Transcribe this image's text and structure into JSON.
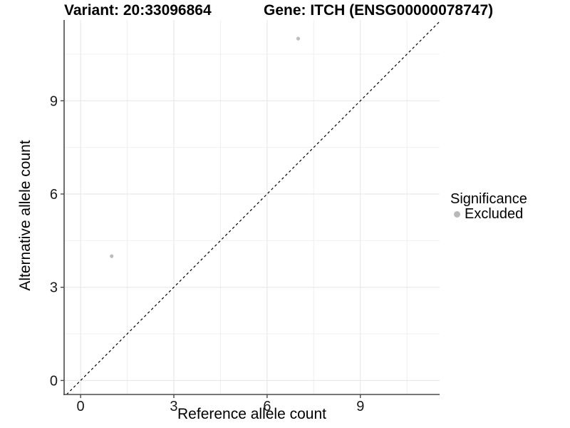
{
  "titles": {
    "variant": "Variant: 20:33096864",
    "gene": "Gene: ITCH (ENSG00000078747)"
  },
  "axes": {
    "x_label": "Reference allele count",
    "y_label": "Alternative allele count"
  },
  "legend": {
    "title": "Significance",
    "items": [
      {
        "label": "Excluded",
        "color": "#b9b9b9"
      }
    ]
  },
  "chart_data": {
    "type": "scatter",
    "title": "Variant: 20:33096864 — Gene: ITCH (ENSG00000078747)",
    "xlabel": "Reference allele count",
    "ylabel": "Alternative allele count",
    "xlim": [
      -0.53,
      11.55
    ],
    "ylim": [
      -0.45,
      11.6
    ],
    "x_ticks": [
      0,
      3,
      6,
      9
    ],
    "y_ticks": [
      0,
      3,
      6,
      9
    ],
    "x_minor_ticks": [
      1.5,
      4.5,
      7.5,
      10.5
    ],
    "y_minor_ticks": [
      1.5,
      4.5,
      7.5,
      10.5
    ],
    "grid": true,
    "legend_position": "right",
    "series": [
      {
        "name": "Excluded",
        "color": "#bdbdbd",
        "points": [
          {
            "x": 1,
            "y": 4
          },
          {
            "x": 7,
            "y": 11
          }
        ]
      }
    ],
    "reference_line": {
      "kind": "identity",
      "slope": 1,
      "intercept": 0,
      "style": "dashed",
      "color": "#000000"
    },
    "colors": {
      "grid_major": "#e5e5e5",
      "grid_minor": "#f0f0f0",
      "axis_line": "#4a4a4a",
      "tick_text": "#1a1a1a",
      "point": "#bdbdbd"
    }
  }
}
